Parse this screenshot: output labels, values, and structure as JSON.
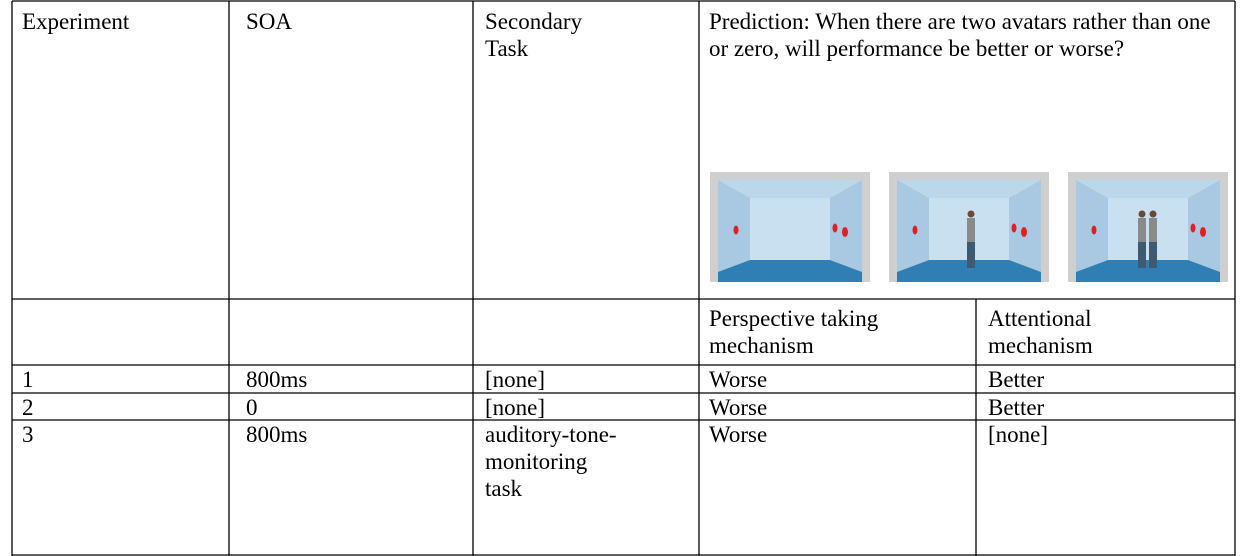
{
  "table": {
    "header": [
      "Experiment",
      "SOA",
      "Secondary Task",
      "Prediction: When there are two avatars rather than one or zero, will performance be better or worse?"
    ],
    "subheader": [
      "Perspective taking mechanism",
      "Attentional mechanism"
    ],
    "rows": [
      [
        "1",
        "800ms",
        "[none]",
        "Worse",
        "Better"
      ],
      [
        "2",
        "0",
        "[none]",
        "Worse",
        "Better"
      ],
      [
        "3",
        "800ms",
        "auditory-tone-monitoring task",
        "Worse",
        "[none]"
      ]
    ]
  }
}
